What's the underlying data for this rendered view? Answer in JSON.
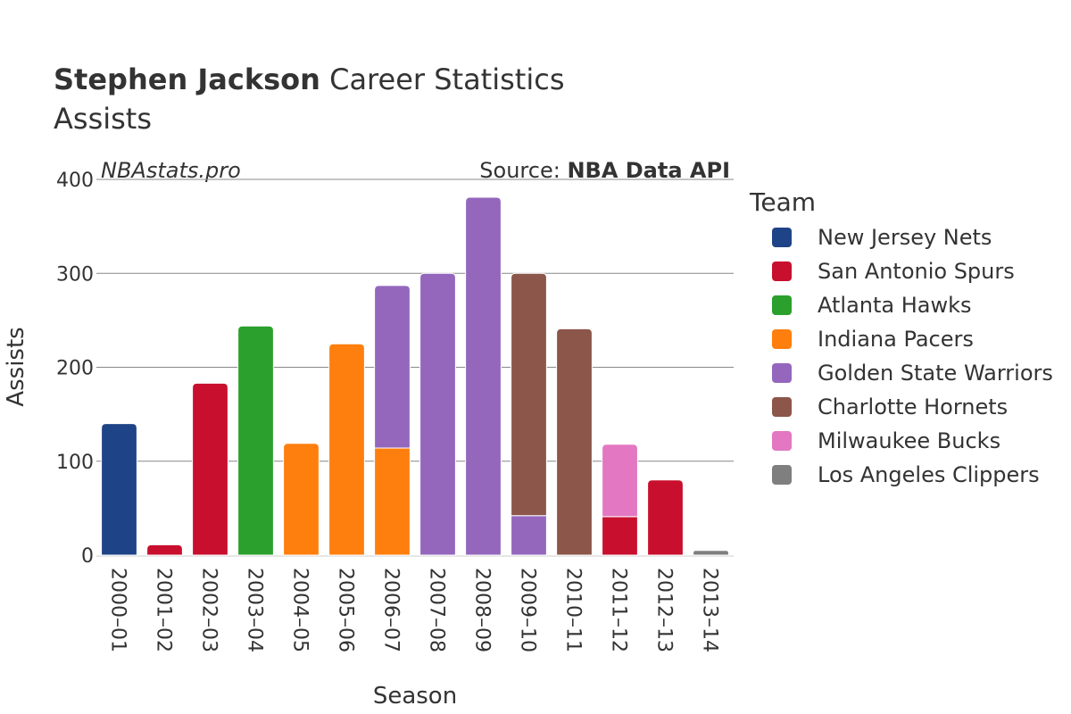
{
  "header": {
    "title_bold": "Stephen Jackson",
    "title_rest": " Career Statistics",
    "subtitle": "Assists"
  },
  "watermark": "NBAstats.pro",
  "source": {
    "prefix": "Source: ",
    "name": "NBA Data API"
  },
  "chart_data": {
    "type": "bar",
    "stacked": true,
    "title": "Stephen Jackson Career Statistics",
    "subtitle": "Assists",
    "xlabel": "Season",
    "ylabel": "Assists",
    "ylim": [
      0,
      400
    ],
    "yticks": [
      0,
      100,
      200,
      300,
      400
    ],
    "grid": true,
    "legend_placement": "right",
    "legend_title": "Team",
    "categories": [
      "2000–01",
      "2001–02",
      "2002–03",
      "2003–04",
      "2004–05",
      "2005–06",
      "2006–07",
      "2007–08",
      "2008–09",
      "2009–10",
      "2010–11",
      "2011–12",
      "2012–13",
      "2013–14"
    ],
    "series": [
      {
        "name": "New Jersey Nets",
        "color": "#1f4387",
        "values": [
          140,
          0,
          0,
          0,
          0,
          0,
          0,
          0,
          0,
          0,
          0,
          0,
          0,
          0
        ]
      },
      {
        "name": "San Antonio Spurs",
        "color": "#c8102e",
        "values": [
          0,
          11,
          183,
          0,
          0,
          0,
          0,
          0,
          0,
          0,
          0,
          41,
          80,
          0
        ]
      },
      {
        "name": "Atlanta Hawks",
        "color": "#2ca02c",
        "values": [
          0,
          0,
          0,
          244,
          0,
          0,
          0,
          0,
          0,
          0,
          0,
          0,
          0,
          0
        ]
      },
      {
        "name": "Indiana Pacers",
        "color": "#ff7f0e",
        "values": [
          0,
          0,
          0,
          0,
          119,
          225,
          114,
          0,
          0,
          0,
          0,
          0,
          0,
          0
        ]
      },
      {
        "name": "Golden State Warriors",
        "color": "#9467bd",
        "values": [
          0,
          0,
          0,
          0,
          0,
          0,
          173,
          300,
          381,
          42,
          0,
          0,
          0,
          0
        ]
      },
      {
        "name": "Charlotte Hornets",
        "color": "#8c564b",
        "values": [
          0,
          0,
          0,
          0,
          0,
          0,
          0,
          0,
          0,
          258,
          241,
          0,
          0,
          0
        ]
      },
      {
        "name": "Milwaukee Bucks",
        "color": "#e377c2",
        "values": [
          0,
          0,
          0,
          0,
          0,
          0,
          0,
          0,
          0,
          0,
          0,
          77,
          0,
          0
        ]
      },
      {
        "name": "Los Angeles Clippers",
        "color": "#7f7f7f",
        "values": [
          0,
          0,
          0,
          0,
          0,
          0,
          0,
          0,
          0,
          0,
          0,
          0,
          0,
          5
        ]
      }
    ]
  }
}
